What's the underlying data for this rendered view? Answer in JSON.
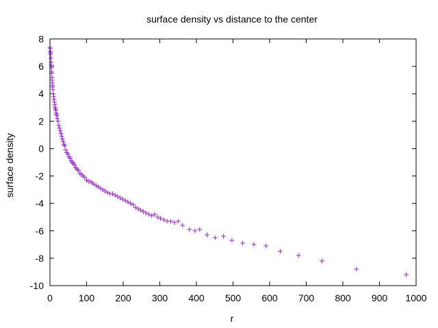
{
  "chart_data": {
    "type": "scatter",
    "title": "surface density vs distance to the center",
    "xlabel": "r",
    "ylabel": "surface density",
    "xlim": [
      0,
      1000
    ],
    "ylim": [
      -10,
      8
    ],
    "x_ticks": [
      0,
      100,
      200,
      300,
      400,
      500,
      600,
      700,
      800,
      900,
      1000
    ],
    "y_ticks": [
      -10,
      -8,
      -6,
      -4,
      -2,
      0,
      2,
      4,
      6,
      8
    ],
    "grid": false,
    "legend": "none",
    "marker": "plus",
    "color": "#a020f0",
    "series": [
      {
        "x": [
          0,
          0.5,
          1,
          1.5,
          2,
          2.5,
          3,
          3.5,
          4,
          4.5,
          5,
          5.5,
          6,
          6.5,
          7,
          7.5,
          8,
          9,
          10,
          11,
          12,
          13,
          14,
          15,
          16,
          17,
          18,
          19,
          20,
          22,
          24,
          26,
          28,
          30,
          32,
          34,
          36,
          38,
          40,
          43,
          46,
          49,
          52,
          55,
          58,
          61,
          64,
          67,
          70,
          74,
          78,
          82,
          86,
          90,
          95,
          100,
          105,
          110,
          115,
          120,
          126,
          132,
          138,
          144,
          150,
          157,
          164,
          171,
          178,
          185,
          192,
          199,
          206,
          213,
          220,
          227,
          234,
          241,
          248,
          255,
          262,
          270,
          278,
          286,
          294,
          302,
          311,
          320,
          330,
          340,
          350,
          362,
          381,
          396,
          409,
          429,
          451,
          474,
          497,
          526,
          557,
          590,
          629,
          679,
          743,
          837,
          973
        ],
        "y": [
          7.4,
          7.3,
          7.1,
          7.0,
          6.9,
          6.6,
          6.3,
          6.1,
          5.9,
          5.6,
          5.5,
          5.2,
          5.0,
          4.8,
          4.6,
          4.5,
          4.3,
          4.0,
          3.8,
          3.6,
          3.4,
          3.2,
          3.0,
          2.9,
          2.8,
          2.6,
          2.5,
          2.4,
          2.2,
          2.0,
          1.7,
          1.5,
          1.3,
          1.1,
          0.9,
          0.7,
          0.5,
          0.3,
          0.2,
          -0.1,
          -0.3,
          -0.4,
          -0.6,
          -0.7,
          -0.9,
          -1.0,
          -1.1,
          -1.2,
          -1.4,
          -1.5,
          -1.6,
          -1.8,
          -1.9,
          -2.0,
          -2.1,
          -2.3,
          -2.4,
          -2.4,
          -2.5,
          -2.6,
          -2.7,
          -2.8,
          -2.9,
          -3.0,
          -3.1,
          -3.2,
          -3.3,
          -3.3,
          -3.4,
          -3.5,
          -3.6,
          -3.7,
          -3.8,
          -3.9,
          -4.0,
          -4.1,
          -4.3,
          -4.4,
          -4.5,
          -4.6,
          -4.7,
          -4.8,
          -4.9,
          -4.8,
          -5.0,
          -5.1,
          -5.2,
          -5.3,
          -5.3,
          -5.4,
          -5.3,
          -5.6,
          -5.9,
          -6.0,
          -5.9,
          -6.3,
          -6.5,
          -6.4,
          -6.7,
          -6.9,
          -7.0,
          -7.1,
          -7.5,
          -7.8,
          -8.2,
          -8.8,
          -9.2
        ]
      }
    ]
  }
}
